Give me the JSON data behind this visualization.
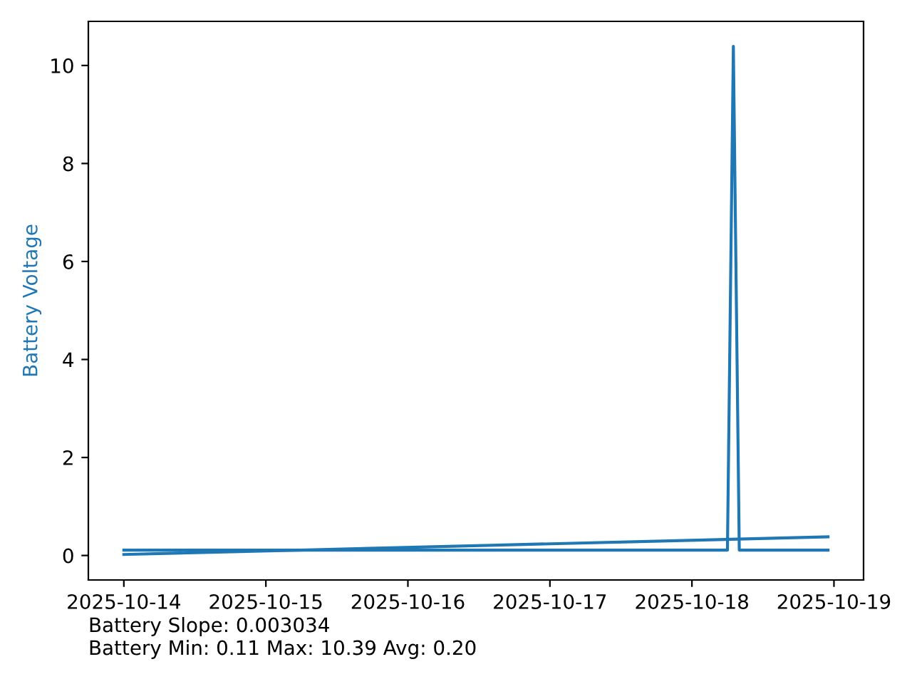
{
  "chart_data": {
    "type": "line",
    "ylabel": "Battery Voltage",
    "series": [
      {
        "color": "#1f77b4",
        "x": [
          "2025-10-14T00:00",
          "2025-10-18T06:00",
          "2025-10-18T07:00",
          "2025-10-18T08:00",
          "2025-10-18T23:00"
        ],
        "values": [
          0.11,
          0.11,
          10.39,
          0.11,
          0.11
        ]
      },
      {
        "color": "#1f77b4",
        "x": [
          "2025-10-14T00:00",
          "2025-10-18T23:00"
        ],
        "values": [
          0.02,
          0.38
        ]
      }
    ],
    "xlim": [
      "2025-10-13T18:00",
      "2025-10-19T05:00"
    ],
    "xticks": [
      "2025-10-14",
      "2025-10-15",
      "2025-10-16",
      "2025-10-17",
      "2025-10-18",
      "2025-10-19"
    ],
    "ylim": [
      -0.5,
      10.9
    ],
    "yticks": [
      0,
      2,
      4,
      6,
      8,
      10
    ],
    "grid": false,
    "annotations": [
      "Battery Slope: 0.003034",
      "Battery Min: 0.11 Max: 10.39 Avg: 0.20"
    ]
  }
}
